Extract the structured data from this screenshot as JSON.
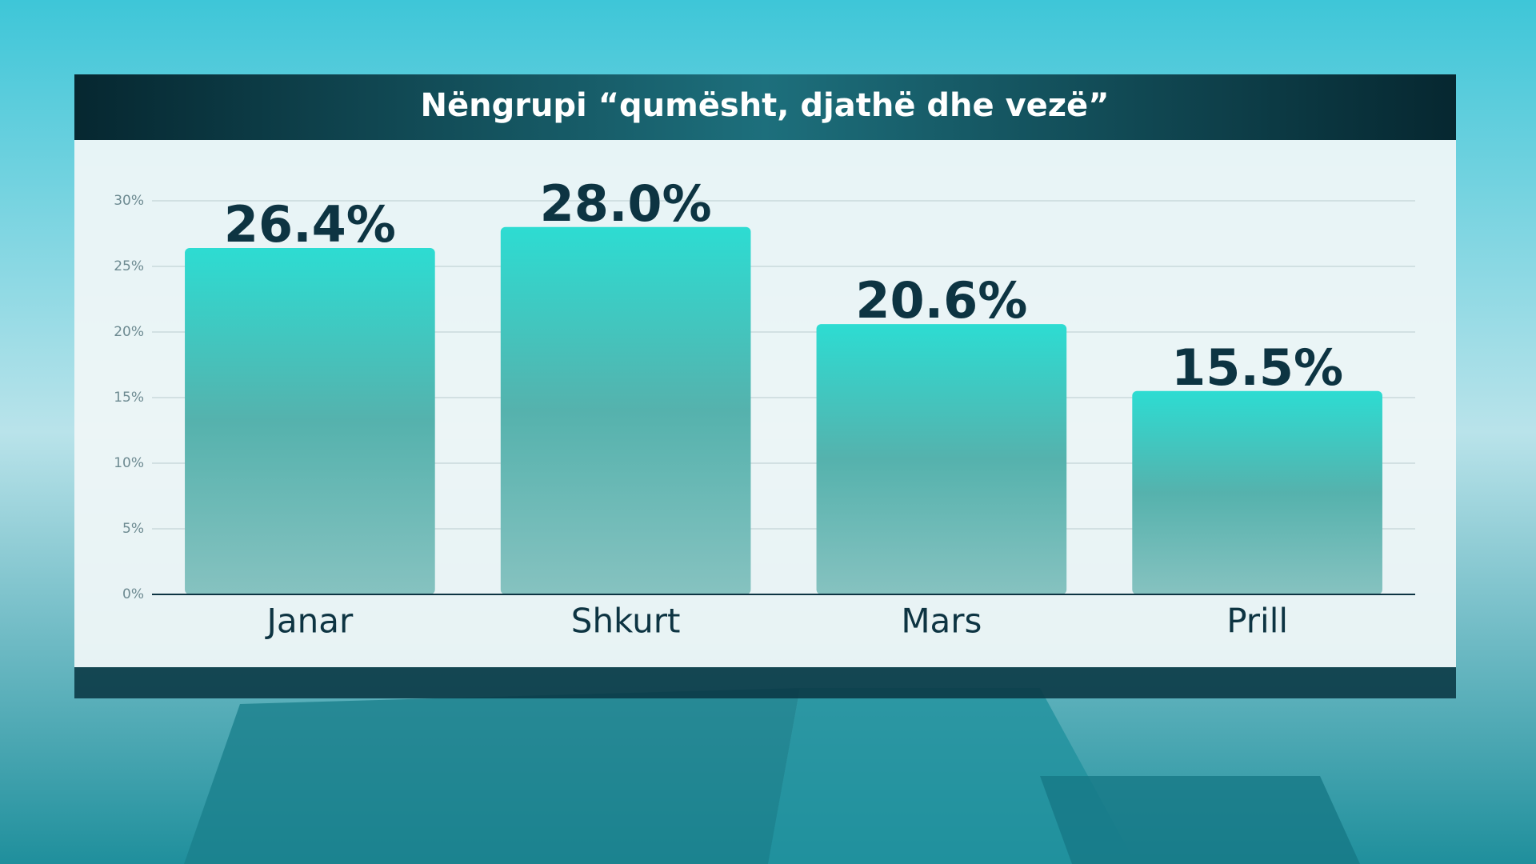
{
  "chart_data": {
    "type": "bar",
    "title": "Nëngrupi “qumësht, djathë dhe vezë”",
    "categories": [
      "Janar",
      "Shkurt",
      "Mars",
      "Prill"
    ],
    "values": [
      26.4,
      28.0,
      20.6,
      15.5
    ],
    "value_labels": [
      "26.4%",
      "28.0%",
      "20.6%",
      "15.5%"
    ],
    "color": "#2ddcd2",
    "ylim": [
      0,
      30
    ],
    "yticks": [
      {
        "value": 0,
        "label": "0%"
      },
      {
        "value": 5,
        "label": "5%"
      },
      {
        "value": 10,
        "label": "10%"
      },
      {
        "value": 15,
        "label": "15%"
      },
      {
        "value": 20,
        "label": "20%"
      },
      {
        "value": 25,
        "label": "25%"
      },
      {
        "value": 30,
        "label": "30%"
      }
    ],
    "grid": true
  }
}
